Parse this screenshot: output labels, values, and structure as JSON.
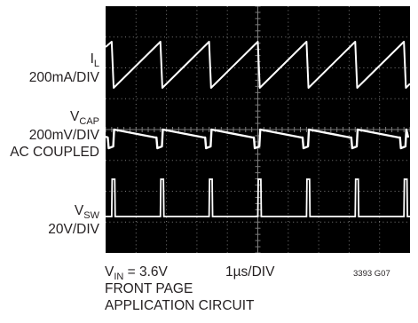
{
  "channels": {
    "il": {
      "name": "I",
      "sub": "L",
      "scale": "200mA/DIV"
    },
    "vcap": {
      "name": "V",
      "sub": "CAP",
      "scale": "200mV/DIV",
      "coupling": "AC COUPLED"
    },
    "vsw": {
      "name": "V",
      "sub": "SW",
      "scale": "20V/DIV"
    }
  },
  "footer": {
    "vin_name": "V",
    "vin_sub": "IN",
    "vin_value": " = 3.6V",
    "time_div": "1µs/DIV",
    "line2": "FRONT PAGE",
    "line3": "APPLICATION CIRCUIT",
    "figure_id": "3393 G07"
  },
  "colors": {
    "screen": "#000000",
    "trace": "#ffffff",
    "grid": "#7d7d7d",
    "text": "#231f20"
  },
  "chart_data": {
    "type": "line",
    "grid": {
      "x_divisions": 10,
      "y_divisions": 8
    },
    "x_unit": "µs",
    "x_range": [
      0,
      10
    ],
    "switching_period_us": 1.6,
    "series": [
      {
        "name": "IL",
        "waveform": "sawtooth",
        "first_peak_us": 0.2,
        "rise_fraction": 0.96
      },
      {
        "name": "VCAP",
        "waveform": "step-ripple",
        "first_dip_us": 0.1,
        "dip_width_us": 0.15
      },
      {
        "name": "VSW",
        "waveform": "pulse",
        "first_pulse_us": 0.2,
        "pulse_width_us": 0.1
      }
    ]
  }
}
